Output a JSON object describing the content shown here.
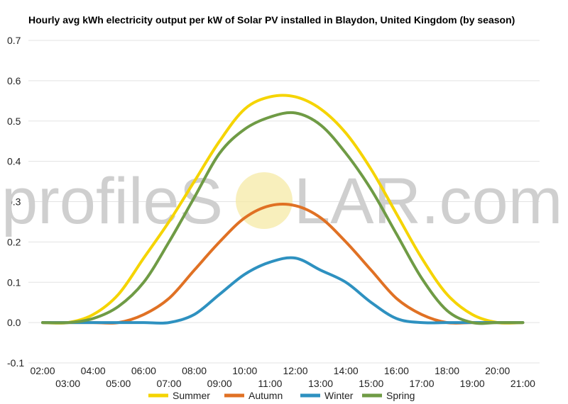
{
  "chart_data": {
    "type": "line",
    "title": "Hourly avg kWh electricity output per kW of Solar PV installed in Blaydon, United Kingdom (by season)",
    "xlabel": "",
    "ylabel": "",
    "x": [
      "02:00",
      "03:00",
      "04:00",
      "05:00",
      "06:00",
      "07:00",
      "08:00",
      "09:00",
      "10:00",
      "11:00",
      "12:00",
      "13:00",
      "14:00",
      "15:00",
      "16:00",
      "17:00",
      "18:00",
      "19:00",
      "20:00",
      "21:00"
    ],
    "x_tick_labels": [
      "02:00",
      "03:00",
      "04:00",
      "05:00",
      "06:00",
      "07:00",
      "08:00",
      "09:00",
      "10:00",
      "11:00",
      "12:00",
      "13:00",
      "14:00",
      "15:00",
      "16:00",
      "17:00",
      "18:00",
      "19:00",
      "20:00",
      "21:00"
    ],
    "ylim": [
      -0.1,
      0.7
    ],
    "y_ticks": [
      -0.1,
      0.0,
      0.1,
      0.2,
      0.3,
      0.4,
      0.5,
      0.6,
      0.7
    ],
    "y_tick_labels": [
      "-0.1",
      "0.0",
      "0.1",
      "0.2",
      "0.3",
      "0.4",
      "0.5",
      "0.6",
      "0.7"
    ],
    "grid": true,
    "legend_position": "bottom",
    "series": [
      {
        "name": "Summer",
        "color": "#f5d400",
        "values": [
          0.0,
          0.0,
          0.02,
          0.07,
          0.16,
          0.25,
          0.35,
          0.45,
          0.53,
          0.56,
          0.56,
          0.53,
          0.47,
          0.38,
          0.27,
          0.16,
          0.07,
          0.02,
          0.0,
          0.0
        ]
      },
      {
        "name": "Autumn",
        "color": "#e07124",
        "values": [
          0.0,
          0.0,
          0.0,
          0.0,
          0.02,
          0.06,
          0.13,
          0.2,
          0.26,
          0.29,
          0.29,
          0.26,
          0.2,
          0.13,
          0.06,
          0.02,
          0.0,
          0.0,
          0.0,
          0.0
        ]
      },
      {
        "name": "Winter",
        "color": "#2e91c0",
        "values": [
          0.0,
          0.0,
          0.0,
          0.0,
          0.0,
          0.0,
          0.02,
          0.07,
          0.12,
          0.15,
          0.16,
          0.13,
          0.1,
          0.05,
          0.01,
          0.0,
          0.0,
          0.0,
          0.0,
          0.0
        ]
      },
      {
        "name": "Spring",
        "color": "#6f9b45",
        "values": [
          0.0,
          0.0,
          0.01,
          0.04,
          0.1,
          0.2,
          0.31,
          0.42,
          0.48,
          0.51,
          0.52,
          0.49,
          0.42,
          0.33,
          0.22,
          0.11,
          0.03,
          0.0,
          0.0,
          0.0
        ]
      }
    ]
  },
  "watermark": {
    "text_left": "profileS",
    "text_right": "LAR.com"
  }
}
